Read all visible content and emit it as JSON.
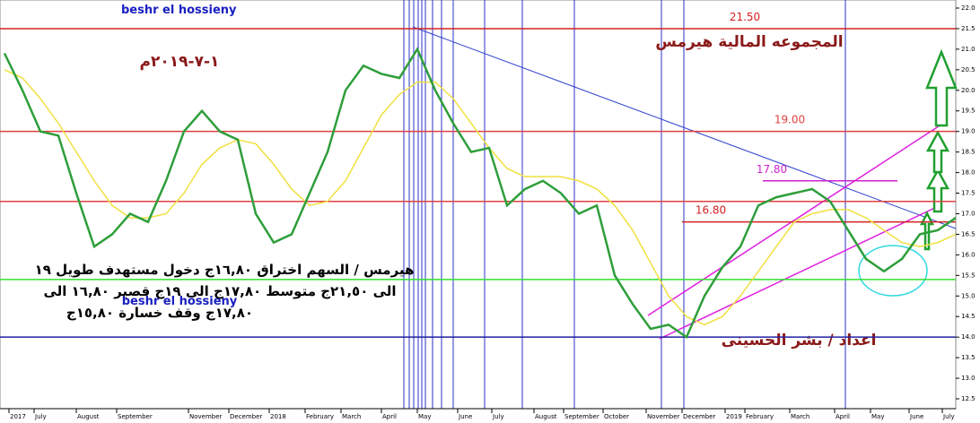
{
  "chart_data": {
    "type": "line",
    "title": "المجموعه المالية هيرمس",
    "subtitle": "١-٧-٢٠١٩م",
    "watermark_top": "beshr el hossieny",
    "watermark_bottom": "beshr el hossieny",
    "author": "اعداد / بشر الحسينى",
    "annotation_lines": [
      "هيرمس / السهم اختراق ١٦,٨٠ج دخول مستهدف طويل ١٩",
      "الى ٢١,٥٠ج متوسط ١٧,٨٠ج الى ١٩ج قصير ١٦,٨٠ الى",
      "١٧,٨٠ج وقف خسارة ١٥,٨٠ج"
    ],
    "x": [
      0,
      2,
      4,
      6,
      8,
      10,
      12,
      14,
      16,
      18,
      20,
      22,
      24,
      26,
      28,
      30,
      32,
      34,
      36,
      38,
      40,
      42,
      44,
      46,
      48,
      50,
      52,
      54,
      56,
      58,
      60,
      62,
      64,
      66,
      68,
      70,
      72,
      74,
      76,
      78,
      80,
      82,
      84,
      86,
      88,
      90,
      92,
      94,
      96,
      98,
      100,
      102,
      104,
      106
    ],
    "series": [
      {
        "color": "#2e9e3a",
        "values": [
          20.9,
          20.0,
          19.0,
          18.9,
          17.5,
          16.2,
          16.5,
          17.0,
          16.8,
          17.8,
          19.0,
          19.5,
          19.0,
          18.8,
          17.0,
          16.3,
          16.5,
          17.5,
          18.5,
          20.0,
          20.6,
          20.4,
          20.3,
          21.0,
          20.0,
          19.2,
          18.5,
          18.6,
          17.2,
          17.6,
          17.8,
          17.5,
          17.0,
          17.2,
          15.5,
          14.8,
          14.2,
          14.3,
          14.0,
          15.0,
          15.7,
          16.2,
          17.2,
          17.4,
          17.5,
          17.6,
          17.3,
          16.6,
          15.9,
          15.6,
          15.9,
          16.5,
          16.6,
          16.9
        ]
      },
      {
        "color": "#f0e040",
        "values": [
          20.5,
          20.3,
          19.8,
          19.2,
          18.5,
          17.8,
          17.2,
          16.9,
          16.9,
          17.0,
          17.5,
          18.2,
          18.6,
          18.8,
          18.7,
          18.2,
          17.6,
          17.2,
          17.3,
          17.8,
          18.6,
          19.4,
          19.9,
          20.2,
          20.2,
          19.8,
          19.2,
          18.6,
          18.1,
          17.9,
          17.9,
          17.9,
          17.8,
          17.6,
          17.2,
          16.6,
          15.8,
          15.0,
          14.5,
          14.3,
          14.5,
          15.0,
          15.6,
          16.2,
          16.8,
          17.0,
          17.1,
          17.1,
          16.9,
          16.6,
          16.3,
          16.2,
          16.3,
          16.5
        ]
      }
    ],
    "hlines": [
      {
        "value": 21.5,
        "label": "21.50",
        "color": "#d42020"
      },
      {
        "value": 19.0,
        "label": "19.00",
        "color": "#e04040"
      },
      {
        "value": 17.8,
        "label": "17.80",
        "color": "#d020d0"
      },
      {
        "value": 17.3,
        "color": "#e04040"
      },
      {
        "value": 16.8,
        "label": "16.80",
        "color": "#d42020"
      },
      {
        "value": 15.4,
        "color": "#30e030"
      },
      {
        "value": 14.0,
        "color": "#2020a0"
      }
    ],
    "xlim": [
      0,
      106
    ],
    "ylim": [
      12.5,
      22.0
    ],
    "yticks": [
      {
        "value": 12.5,
        "label": "12.5"
      },
      {
        "value": 13,
        "label": "13.0"
      },
      {
        "value": 13.5,
        "label": "13.5"
      },
      {
        "value": 14,
        "label": "14.0"
      },
      {
        "value": 14.5,
        "label": "14.5"
      },
      {
        "value": 15,
        "label": "15.0"
      },
      {
        "value": 15.5,
        "label": "15.5"
      },
      {
        "value": 16,
        "label": "16.0"
      },
      {
        "value": 16.5,
        "label": "16.5"
      },
      {
        "value": 17,
        "label": "17.0"
      },
      {
        "value": 17.5,
        "label": "17.5"
      },
      {
        "value": 18,
        "label": "18.0"
      },
      {
        "value": 18.5,
        "label": "18.5"
      },
      {
        "value": 19,
        "label": "19.0"
      },
      {
        "value": 19.5,
        "label": "19.5"
      },
      {
        "value": 20,
        "label": "20.0"
      },
      {
        "value": 20.5,
        "label": "20.5"
      },
      {
        "value": 21,
        "label": "21.0"
      },
      {
        "value": 21.5,
        "label": "21.5"
      },
      {
        "value": 22,
        "label": "22.0"
      }
    ],
    "xticks": [
      {
        "value": 0.5,
        "label": "2017"
      },
      {
        "value": 3.3,
        "label": "July"
      },
      {
        "value": 8,
        "label": "August"
      },
      {
        "value": 12.5,
        "label": "September"
      },
      {
        "value": 20.5,
        "label": "November"
      },
      {
        "value": 25,
        "label": "December"
      },
      {
        "value": 29.5,
        "label": "2018"
      },
      {
        "value": 33.5,
        "label": "February"
      },
      {
        "value": 37.5,
        "label": "March"
      },
      {
        "value": 42,
        "label": "April"
      },
      {
        "value": 46,
        "label": "May"
      },
      {
        "value": 50.5,
        "label": "June"
      },
      {
        "value": 54.3,
        "label": "July"
      },
      {
        "value": 59,
        "label": "August"
      },
      {
        "value": 62.3,
        "label": "September"
      },
      {
        "value": 66.7,
        "label": "October"
      },
      {
        "value": 71.5,
        "label": "November"
      },
      {
        "value": 75.5,
        "label": "December"
      },
      {
        "value": 80.3,
        "label": "2019"
      },
      {
        "value": 82.5,
        "label": "February"
      },
      {
        "value": 87.5,
        "label": "March"
      },
      {
        "value": 92.5,
        "label": "April"
      },
      {
        "value": 96.5,
        "label": "May"
      },
      {
        "value": 100.8,
        "label": "June"
      },
      {
        "value": 104.5,
        "label": "July"
      }
    ]
  }
}
